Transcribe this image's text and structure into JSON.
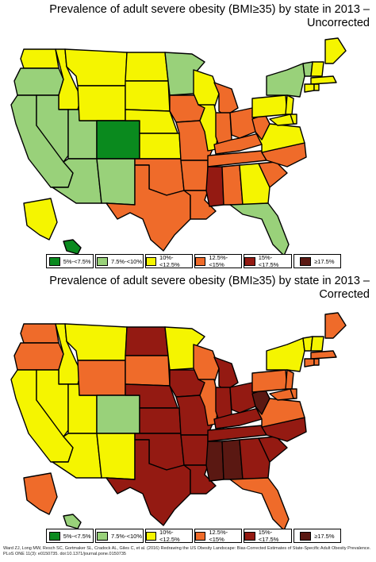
{
  "panels": [
    {
      "title_line1": "Prevalence of adult severe obesity (BMI≥35) by state in 2013 –",
      "title_line2": "Uncorrected"
    },
    {
      "title_line1": "Prevalence of adult severe obesity (BMI≥35) by state in 2013 –",
      "title_line2": "Corrected"
    }
  ],
  "legend": [
    {
      "label": "5%-<7.5%",
      "color": "#0a8a1e"
    },
    {
      "label": "7.5%-<10%",
      "color": "#99d17a"
    },
    {
      "label": "10%-<12.5%",
      "color": "#f5f500"
    },
    {
      "label": "12.5%-<15%",
      "color": "#ef6b2a"
    },
    {
      "label": "15%-<17.5%",
      "color": "#941a12"
    },
    {
      "label": "≥17.5%",
      "color": "#5a1812"
    }
  ],
  "regions": [
    {
      "name": "WA",
      "uncorrected": 2,
      "corrected": 3
    },
    {
      "name": "OR",
      "uncorrected": 1,
      "corrected": 3
    },
    {
      "name": "CA",
      "uncorrected": 1,
      "corrected": 2
    },
    {
      "name": "ID",
      "uncorrected": 2,
      "corrected": 2
    },
    {
      "name": "NV",
      "uncorrected": 1,
      "corrected": 2
    },
    {
      "name": "UT",
      "uncorrected": 1,
      "corrected": 2
    },
    {
      "name": "AZ",
      "uncorrected": 1,
      "corrected": 2
    },
    {
      "name": "MT",
      "uncorrected": 2,
      "corrected": 2
    },
    {
      "name": "WY",
      "uncorrected": 2,
      "corrected": 3
    },
    {
      "name": "CO",
      "uncorrected": 0,
      "corrected": 1
    },
    {
      "name": "NM",
      "uncorrected": 1,
      "corrected": 2
    },
    {
      "name": "ND",
      "uncorrected": 2,
      "corrected": 4
    },
    {
      "name": "SD",
      "uncorrected": 2,
      "corrected": 3
    },
    {
      "name": "NE",
      "uncorrected": 2,
      "corrected": 4
    },
    {
      "name": "KS",
      "uncorrected": 2,
      "corrected": 4
    },
    {
      "name": "OK",
      "uncorrected": 3,
      "corrected": 4
    },
    {
      "name": "TX",
      "uncorrected": 3,
      "corrected": 4
    },
    {
      "name": "MN",
      "uncorrected": 1,
      "corrected": 2
    },
    {
      "name": "IA",
      "uncorrected": 3,
      "corrected": 4
    },
    {
      "name": "MO",
      "uncorrected": 3,
      "corrected": 4
    },
    {
      "name": "AR",
      "uncorrected": 3,
      "corrected": 4
    },
    {
      "name": "LA",
      "uncorrected": 3,
      "corrected": 4
    },
    {
      "name": "WI",
      "uncorrected": 2,
      "corrected": 3
    },
    {
      "name": "IL",
      "uncorrected": 2,
      "corrected": 3
    },
    {
      "name": "MI",
      "uncorrected": 3,
      "corrected": 4
    },
    {
      "name": "IN",
      "uncorrected": 3,
      "corrected": 4
    },
    {
      "name": "OH",
      "uncorrected": 3,
      "corrected": 4
    },
    {
      "name": "KY",
      "uncorrected": 3,
      "corrected": 4
    },
    {
      "name": "TN",
      "uncorrected": 3,
      "corrected": 4
    },
    {
      "name": "MS",
      "uncorrected": 4,
      "corrected": 5
    },
    {
      "name": "AL",
      "uncorrected": 3,
      "corrected": 5
    },
    {
      "name": "GA",
      "uncorrected": 2,
      "corrected": 4
    },
    {
      "name": "FL",
      "uncorrected": 1,
      "corrected": 3
    },
    {
      "name": "SC",
      "uncorrected": 3,
      "corrected": 4
    },
    {
      "name": "NC",
      "uncorrected": 3,
      "corrected": 4
    },
    {
      "name": "VA",
      "uncorrected": 2,
      "corrected": 3
    },
    {
      "name": "WV",
      "uncorrected": 3,
      "corrected": 5
    },
    {
      "name": "PA",
      "uncorrected": 2,
      "corrected": 3
    },
    {
      "name": "NY",
      "uncorrected": 1,
      "corrected": 2
    },
    {
      "name": "ME",
      "uncorrected": 2,
      "corrected": 3
    },
    {
      "name": "VT",
      "uncorrected": 1,
      "corrected": 2
    },
    {
      "name": "NH",
      "uncorrected": 2,
      "corrected": 2
    },
    {
      "name": "AK",
      "uncorrected": 2,
      "corrected": 3
    },
    {
      "name": "HI",
      "uncorrected": 0,
      "corrected": 1
    }
  ],
  "citation_line1": "Ward ZJ, Long MW, Resch SC, Gortmaker SL, Cradock AL, Giles C, et al. (2016) Redrawing the US Obesity Landscape: Bias-Corrected Estimates of State-Specific Adult Obesity Prevalence.",
  "citation_line2": "PLoS ONE 11(3): e0150735. doi:10.1371/journal.pone.0150735"
}
